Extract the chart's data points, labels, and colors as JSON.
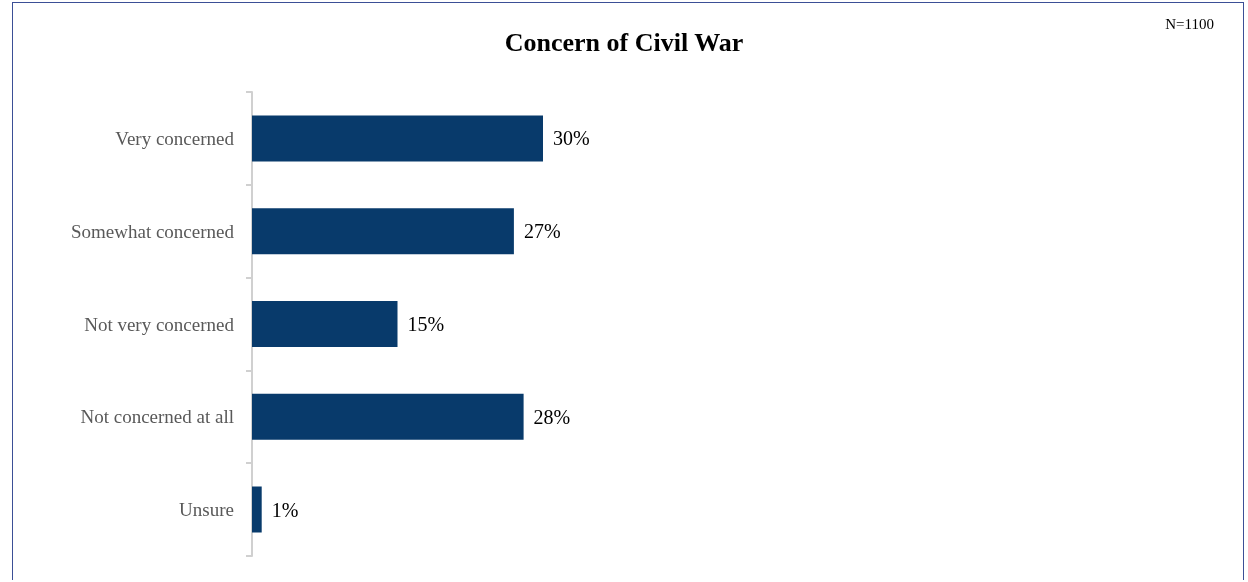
{
  "chart_data": {
    "type": "bar",
    "orientation": "horizontal",
    "title": "Concern of Civil War",
    "annotations": [
      "N=1100"
    ],
    "categories": [
      "Very concerned",
      "Somewhat concerned",
      "Not very concerned",
      "Not concerned at all",
      "Unsure"
    ],
    "values": [
      30,
      27,
      15,
      28,
      1
    ],
    "value_labels": [
      "30%",
      "27%",
      "15%",
      "28%",
      "1%"
    ],
    "color": "#083a6b"
  }
}
